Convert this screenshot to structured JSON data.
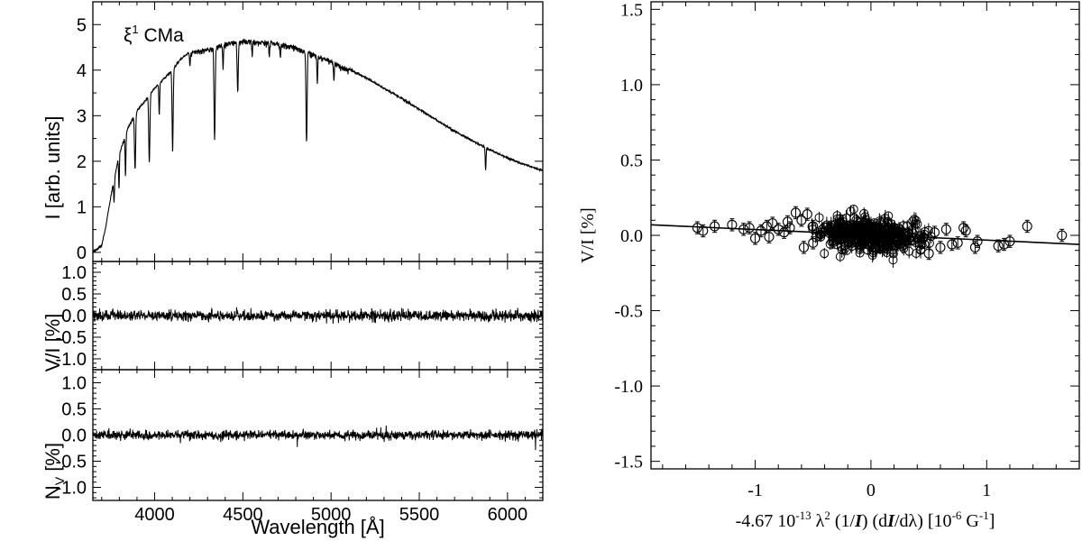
{
  "chart_data": [
    {
      "type": "line",
      "panel": "stokes-I",
      "star_label": {
        "symbol": "ξ",
        "sup": "1",
        "rest": " CMa"
      },
      "ylabel": "I [arb. units]",
      "xlim": [
        3650,
        6200
      ],
      "ylim": [
        -0.2,
        5.5
      ],
      "yticks": [
        0,
        1,
        2,
        3,
        4,
        5
      ],
      "ytick_labels": [
        "0",
        "1",
        "2",
        "3",
        "4",
        "5"
      ],
      "xticks": [
        4000,
        4500,
        5000,
        5500,
        6000
      ],
      "continuum": {
        "x": [
          3650,
          3700,
          3720,
          3760,
          3800,
          3850,
          3900,
          3950,
          4000,
          4050,
          4100,
          4150,
          4200,
          4300,
          4400,
          4500,
          4600,
          4700,
          4800,
          4900,
          5000,
          5100,
          5200,
          5300,
          5400,
          5500,
          5600,
          5700,
          5800,
          5900,
          6000,
          6100,
          6200
        ],
        "y": [
          0.0,
          0.15,
          0.5,
          1.4,
          2.15,
          2.75,
          3.1,
          3.35,
          3.6,
          3.8,
          4.0,
          4.25,
          4.4,
          4.48,
          4.6,
          4.67,
          4.65,
          4.6,
          4.52,
          4.38,
          4.22,
          4.03,
          3.83,
          3.6,
          3.38,
          3.14,
          2.9,
          2.66,
          2.45,
          2.25,
          2.07,
          1.92,
          1.8
        ]
      },
      "absorption_lines": [
        {
          "x": 3770,
          "depth": 0.5
        },
        {
          "x": 3798,
          "depth": 0.7
        },
        {
          "x": 3835,
          "depth": 0.9
        },
        {
          "x": 3889,
          "depth": 1.2
        },
        {
          "x": 3970,
          "depth": 1.5
        },
        {
          "x": 4026,
          "depth": 0.7
        },
        {
          "x": 4102,
          "depth": 1.8
        },
        {
          "x": 4200,
          "depth": 0.3
        },
        {
          "x": 4340,
          "depth": 2.0
        },
        {
          "x": 4388,
          "depth": 0.5
        },
        {
          "x": 4471,
          "depth": 1.1
        },
        {
          "x": 4553,
          "depth": 0.3
        },
        {
          "x": 4650,
          "depth": 0.3
        },
        {
          "x": 4713,
          "depth": 0.3
        },
        {
          "x": 4861,
          "depth": 2.0
        },
        {
          "x": 4922,
          "depth": 0.6
        },
        {
          "x": 5016,
          "depth": 0.4
        },
        {
          "x": 5876,
          "depth": 0.5
        }
      ]
    },
    {
      "type": "line",
      "panel": "stokes-V",
      "ylabel": "V/I [%]",
      "xlim": [
        3650,
        6200
      ],
      "ylim": [
        -1.25,
        1.25
      ],
      "yticks": [
        -1.0,
        -0.5,
        0.0,
        0.5,
        1.0
      ],
      "ytick_labels": [
        "-1.0",
        "-0.5",
        "0.0",
        "0.5",
        "1.0"
      ],
      "baseline": 0.0,
      "noise_rms": 0.06
    },
    {
      "type": "line",
      "panel": "null-N",
      "ylabel": {
        "main": "N",
        "sub": "V",
        "rest": " [%]"
      },
      "xlim": [
        3650,
        6200
      ],
      "ylim": [
        -1.25,
        1.25
      ],
      "yticks": [
        -1.0,
        -0.5,
        0.0,
        0.5,
        1.0
      ],
      "ytick_labels": [
        "-1.0",
        "-0.5",
        "0.0",
        "0.5",
        "1.0"
      ],
      "baseline": 0.0,
      "noise_rms": 0.045,
      "xlabel": "Wavelength [Å]",
      "xtick_labels": [
        "4000",
        "4500",
        "5000",
        "5500",
        "6000"
      ]
    },
    {
      "type": "scatter",
      "panel": "regression",
      "xlabel_parts": [
        "-4.67 10",
        "-13",
        " λ",
        "2",
        " (1/",
        "I",
        ") (d",
        "I",
        "/dλ) [10",
        "-6",
        " G",
        "-1",
        "]"
      ],
      "ylabel": "V/I [%]",
      "xlim": [
        -1.9,
        1.8
      ],
      "ylim": [
        -1.55,
        1.55
      ],
      "xticks": [
        -1,
        0,
        1
      ],
      "xtick_labels": [
        "-1",
        "0",
        "1"
      ],
      "yticks": [
        -1.5,
        -1.0,
        -0.5,
        0.0,
        0.5,
        1.0,
        1.5
      ],
      "ytick_labels": [
        "-1.5",
        "-1.0",
        "-0.5",
        "0.0",
        "0.5",
        "1.0",
        "1.5"
      ],
      "fit_line": {
        "x": [
          -1.9,
          1.8
        ],
        "y": [
          0.07,
          -0.06
        ]
      },
      "points": {
        "x": [
          -1.5,
          -1.45,
          -1.35,
          -1.2,
          -1.1,
          -1.05,
          -1.0,
          -0.95,
          -0.9,
          -0.88,
          -0.85,
          -0.8,
          -0.75,
          -0.72,
          -0.7,
          -0.65,
          -0.6,
          -0.58,
          -0.55,
          -0.5,
          -0.5,
          0.5,
          0.55,
          0.6,
          0.65,
          0.7,
          0.75,
          0.8,
          0.82,
          0.9,
          0.92,
          1.1,
          1.15,
          1.2,
          1.35,
          1.65
        ],
        "y": [
          0.05,
          0.03,
          0.06,
          0.07,
          0.04,
          0.05,
          -0.02,
          0.03,
          0.06,
          -0.01,
          0.08,
          0.04,
          0.02,
          0.09,
          0.05,
          0.15,
          0.1,
          -0.08,
          0.14,
          0.06,
          -0.05,
          -0.12,
          0.02,
          -0.08,
          0.04,
          -0.06,
          -0.05,
          0.05,
          0.03,
          -0.08,
          -0.04,
          -0.07,
          -0.06,
          -0.04,
          0.06,
          0.0
        ],
        "error": 0.04
      },
      "cluster": {
        "n": 420,
        "x_sd": 0.22,
        "y_sd": 0.05,
        "x_range": [
          -0.55,
          0.6
        ]
      }
    }
  ]
}
